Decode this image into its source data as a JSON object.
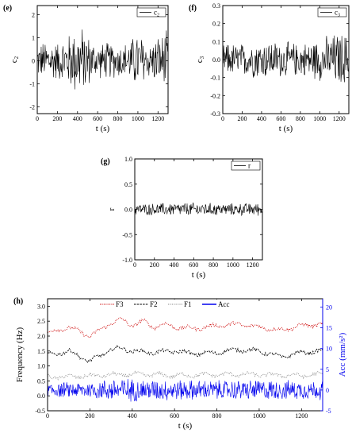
{
  "chart_data": [
    {
      "id": "e",
      "panel_label": "(e)",
      "type": "line",
      "xlabel": "t (s)",
      "ylabel": "c2",
      "xlim": [
        0,
        1300
      ],
      "ylim": [
        -2.3,
        2.4
      ],
      "xticks": [
        0,
        200,
        400,
        600,
        800,
        1000,
        1200
      ],
      "yticks": [
        -2,
        -1,
        0,
        1,
        2
      ],
      "legend": [
        "c2"
      ],
      "legend_position": "top-right",
      "series": [
        {
          "color": "#000000",
          "x": [
            0,
            100,
            200,
            300,
            360,
            420,
            480,
            540,
            600,
            700,
            800,
            900,
            1000,
            1050,
            1100,
            1200,
            1300
          ],
          "envelope": [
            0.8,
            1.0,
            0.9,
            1.2,
            1.6,
            1.7,
            1.5,
            1.0,
            0.8,
            0.9,
            0.8,
            0.9,
            1.4,
            1.2,
            0.8,
            1.2,
            1.4
          ]
        }
      ]
    },
    {
      "id": "f",
      "panel_label": "(f)",
      "type": "line",
      "xlabel": "t (s)",
      "ylabel": "c3",
      "xlim": [
        0,
        1300
      ],
      "ylim": [
        -0.3,
        0.3
      ],
      "xticks": [
        0,
        200,
        400,
        600,
        800,
        1000,
        1200
      ],
      "yticks": [
        -0.3,
        -0.2,
        -0.1,
        0.0,
        0.1,
        0.2,
        0.3
      ],
      "legend": [
        "c3"
      ],
      "legend_position": "top-right",
      "series": [
        {
          "color": "#000000",
          "x": [
            0,
            200,
            400,
            600,
            800,
            1000,
            1200,
            1300
          ],
          "envelope": [
            0.1,
            0.1,
            0.12,
            0.11,
            0.1,
            0.13,
            0.17,
            0.15
          ]
        }
      ]
    },
    {
      "id": "g",
      "panel_label": "(g)",
      "type": "line",
      "xlabel": "t (s)",
      "ylabel": "r",
      "xlim": [
        0,
        1300
      ],
      "ylim": [
        -1.0,
        1.0
      ],
      "xticks": [
        0,
        200,
        400,
        600,
        800,
        1000,
        1200
      ],
      "yticks": [
        -1.0,
        -0.5,
        0.0,
        0.5,
        1.0
      ],
      "legend": [
        "r"
      ],
      "legend_position": "top-right",
      "series": [
        {
          "color": "#000000",
          "x": [
            0,
            300,
            600,
            900,
            1200,
            1300
          ],
          "envelope": [
            0.12,
            0.14,
            0.15,
            0.13,
            0.14,
            0.14
          ]
        }
      ]
    },
    {
      "id": "h",
      "panel_label": "(h)",
      "type": "line",
      "xlabel": "t (s)",
      "ylabel": "Frequency (Hz)",
      "y2label": "Acc (mm/s²)",
      "xlim": [
        0,
        1300
      ],
      "ylim": [
        -0.5,
        3.25
      ],
      "y2lim": [
        -5,
        22
      ],
      "xticks": [
        0,
        200,
        400,
        600,
        800,
        1000,
        1200
      ],
      "yticks": [
        -0.5,
        0.0,
        0.5,
        1.0,
        1.5,
        2.0,
        2.5,
        3.0
      ],
      "y2ticks": [
        -5,
        0,
        5,
        10,
        15,
        20
      ],
      "legend": [
        "F3",
        "F2",
        "F1",
        "Acc"
      ],
      "legend_position": "top-center",
      "series": [
        {
          "name": "F3",
          "color": "#cc0000",
          "style": "dotted",
          "x": [
            0,
            100,
            200,
            250,
            300,
            350,
            400,
            450,
            500,
            550,
            600,
            700,
            800,
            900,
            1000,
            1100,
            1200,
            1300
          ],
          "values": [
            2.1,
            2.3,
            2.0,
            2.2,
            2.45,
            2.55,
            2.35,
            2.5,
            2.3,
            2.4,
            2.3,
            2.25,
            2.35,
            2.4,
            2.3,
            2.2,
            2.35,
            2.4
          ]
        },
        {
          "name": "F2",
          "color": "#000000",
          "style": "dashed",
          "x": [
            0,
            100,
            200,
            300,
            350,
            400,
            500,
            600,
            700,
            800,
            900,
            1000,
            1100,
            1200,
            1300
          ],
          "values": [
            1.35,
            1.5,
            1.15,
            1.55,
            1.6,
            1.5,
            1.45,
            1.5,
            1.4,
            1.45,
            1.55,
            1.5,
            1.3,
            1.45,
            1.5
          ]
        },
        {
          "name": "F1",
          "color": "#888888",
          "style": "dotted",
          "x": [
            0,
            150,
            300,
            450,
            600,
            750,
            900,
            1050,
            1200,
            1300
          ],
          "values": [
            0.62,
            0.65,
            0.7,
            0.72,
            0.68,
            0.7,
            0.72,
            0.7,
            0.68,
            0.72
          ]
        },
        {
          "name": "Acc",
          "color": "#0000ee",
          "style": "solid",
          "axis": "right",
          "x": [
            0,
            200,
            350,
            400,
            600,
            800,
            1000,
            1200,
            1300
          ],
          "envelope": [
            2.0,
            2.2,
            3.5,
            3.0,
            2.8,
            2.6,
            2.8,
            2.5,
            2.6
          ]
        }
      ]
    }
  ]
}
